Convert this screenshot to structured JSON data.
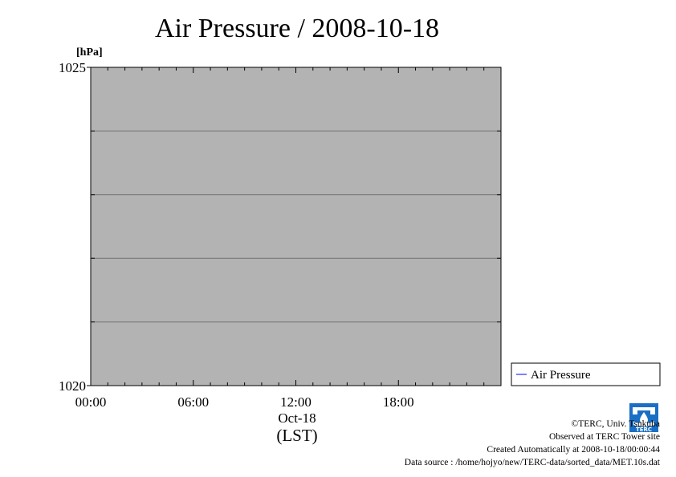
{
  "chart_data": {
    "type": "line",
    "title": "Air Pressure / 2008-10-18",
    "ylabel": "[hPa]",
    "xlabel": "(LST)",
    "date_label": "Oct-18",
    "ylim": [
      1020,
      1025
    ],
    "y_ticks": [
      "1020",
      "1025"
    ],
    "x_ticks": [
      "00:00",
      "06:00",
      "12:00",
      "18:00"
    ],
    "x_tick_hours": [
      0,
      6,
      12,
      18
    ],
    "xlim_hours": [
      0,
      24
    ],
    "y_minor_gridlines": [
      1021,
      1022,
      1023,
      1024
    ],
    "grid": true,
    "legend_position": "right, outside plot",
    "series": [
      {
        "name": "Air Pressure",
        "x": [],
        "values": []
      }
    ],
    "plot_background": "#b3b3b3",
    "series_color": "#0000ff"
  },
  "footer": {
    "copyright": "©TERC, Univ. Tsukuba",
    "observed": "Observed at TERC Tower site",
    "created": "Created Automatically at 2008-10-18/00:00:44",
    "source": "Data source : /home/hojyo/new/TERC-data/sorted_data/MET.10s.dat"
  },
  "logo": {
    "text": "TERC",
    "color": "#1a6fc4"
  }
}
